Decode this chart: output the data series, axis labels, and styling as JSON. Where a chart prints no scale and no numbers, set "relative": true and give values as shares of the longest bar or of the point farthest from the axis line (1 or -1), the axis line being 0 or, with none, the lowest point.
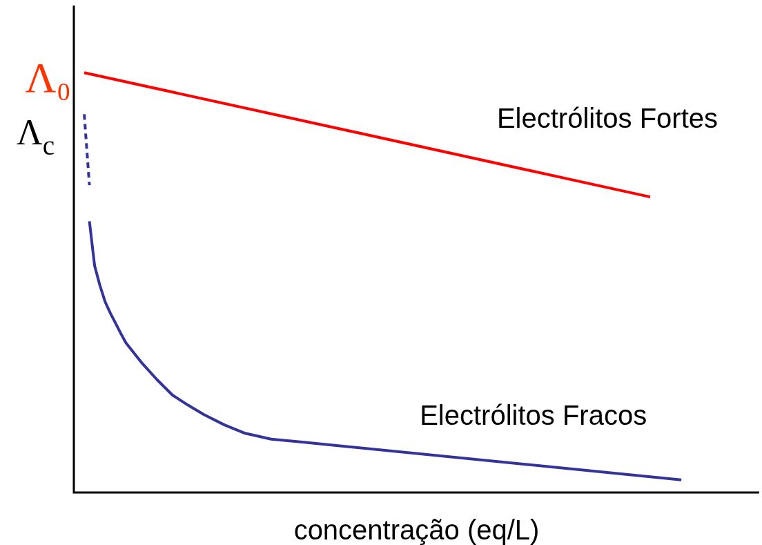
{
  "chart_data": {
    "type": "line",
    "relative": true,
    "xlabel": "concentração (eq/L)",
    "ylabel": "Λ$_{c}$",
    "tick_labels": false,
    "legend": false,
    "marker": "none",
    "annotations": [
      "Λ₀"
    ],
    "categories": [
      null,
      null,
      null,
      null,
      null,
      null,
      null,
      null,
      null,
      null,
      null,
      null,
      null,
      null,
      null,
      null,
      null,
      null,
      null,
      null,
      null,
      null,
      null,
      null,
      null,
      null,
      null,
      null,
      null,
      null,
      null,
      null,
      null,
      null,
      null,
      null,
      null,
      null,
      null,
      null,
      null,
      null,
      null,
      null,
      null,
      null,
      null,
      null,
      null,
      null,
      null,
      null,
      null,
      null,
      null,
      null,
      null,
      null,
      null,
      null,
      null,
      null,
      null,
      null,
      null,
      null,
      null,
      null,
      null,
      null,
      null,
      null,
      null,
      null,
      null,
      null,
      null,
      null,
      null,
      null,
      null,
      null,
      null,
      null,
      null,
      null,
      null,
      null,
      null,
      null,
      null,
      null,
      null,
      null,
      null,
      null,
      null,
      null,
      null,
      null,
      null,
      null,
      null,
      null,
      null,
      null,
      null,
      null,
      null,
      null,
      null,
      null,
      null,
      null,
      null,
      null,
      null,
      null,
      null,
      null,
      null,
      null,
      null,
      null,
      null,
      null,
      null,
      null,
      null,
      null,
      null,
      null,
      null
    ],
    "series": [
      {
        "name": "Electrólitos Fortes",
        "color": "#ff0000",
        "values": [
          null,
          null,
          1,
          null,
          null,
          null,
          null,
          null,
          null,
          null,
          null,
          null,
          null,
          null,
          null,
          null,
          null,
          null,
          null,
          null,
          null,
          null,
          null,
          null,
          null,
          null,
          null,
          null,
          null,
          null,
          null,
          null,
          null,
          null,
          null,
          null,
          null,
          null,
          null,
          null,
          null,
          null,
          null,
          null,
          null,
          null,
          null,
          null,
          null,
          null,
          null,
          null,
          null,
          null,
          null,
          null,
          null,
          null,
          null,
          null,
          null,
          null,
          null,
          null,
          null,
          null,
          null,
          null,
          null,
          null,
          null,
          null,
          null,
          null,
          null,
          null,
          null,
          null,
          null,
          null,
          null,
          null,
          null,
          null,
          null,
          null,
          null,
          null,
          null,
          null,
          null,
          null,
          null,
          null,
          null,
          null,
          null,
          null,
          null,
          null,
          null,
          null,
          null,
          null,
          null,
          null,
          null,
          null,
          null,
          null,
          null,
          0.704,
          null,
          null,
          null,
          null,
          null,
          null,
          null,
          null,
          null,
          null,
          null,
          null,
          null,
          null,
          null,
          null,
          null,
          null,
          null,
          null,
          null
        ]
      },
      {
        "color": "#333399",
        "line_style": "dashed",
        "values": [
          null,
          null,
          0.901,
          0.732,
          null,
          null,
          null,
          null,
          null,
          null,
          null,
          null,
          null,
          null,
          null,
          null,
          null,
          null,
          null,
          null,
          null,
          null,
          null,
          null,
          null,
          null,
          null,
          null,
          null,
          null,
          null,
          null,
          null,
          null,
          null,
          null,
          null,
          null,
          null,
          null,
          null,
          null,
          null,
          null,
          null,
          null,
          null,
          null,
          null,
          null,
          null,
          null,
          null,
          null,
          null,
          null,
          null,
          null,
          null,
          null,
          null,
          null,
          null,
          null,
          null,
          null,
          null,
          null,
          null,
          null,
          null,
          null,
          null,
          null,
          null,
          null,
          null,
          null,
          null,
          null,
          null,
          null,
          null,
          null,
          null,
          null,
          null,
          null,
          null,
          null,
          null,
          null,
          null,
          null,
          null,
          null,
          null,
          null,
          null,
          null,
          null,
          null,
          null,
          null,
          null,
          null,
          null,
          null,
          null,
          null,
          null,
          null,
          null,
          null,
          null,
          null,
          null,
          null,
          null,
          null,
          null,
          null,
          null,
          null,
          null,
          null,
          null,
          null,
          null,
          null,
          null,
          null,
          null
        ]
      },
      {
        "name": "Electrólitos Fracos",
        "color": "#333399",
        "values": [
          null,
          null,
          null,
          0.646,
          0.54,
          0.494,
          0.455,
          0.428,
          null,
          0.38,
          0.357,
          null,
          null,
          0.31,
          null,
          null,
          0.269,
          null,
          null,
          0.232,
          null,
          null,
          0.208,
          null,
          null,
          0.186,
          null,
          null,
          null,
          0.161,
          null,
          null,
          null,
          0.141,
          null,
          null,
          null,
          null,
          0.127,
          null,
          null,
          null,
          null,
          null,
          0.12,
          null,
          null,
          null,
          null,
          null,
          null,
          null,
          null,
          null,
          null,
          null,
          null,
          null,
          null,
          null,
          null,
          null,
          null,
          null,
          null,
          null,
          null,
          null,
          null,
          null,
          null,
          null,
          null,
          null,
          null,
          null,
          null,
          null,
          null,
          null,
          null,
          null,
          null,
          null,
          null,
          null,
          null,
          null,
          null,
          null,
          null,
          null,
          null,
          null,
          null,
          null,
          null,
          null,
          null,
          null,
          null,
          null,
          null,
          null,
          null,
          null,
          null,
          null,
          null,
          null,
          null,
          null,
          null,
          null,
          null,
          null,
          null,
          0.03,
          null,
          null,
          null,
          null,
          null,
          null,
          null,
          null,
          null,
          null,
          null,
          null,
          null,
          null,
          null
        ]
      }
    ]
  }
}
